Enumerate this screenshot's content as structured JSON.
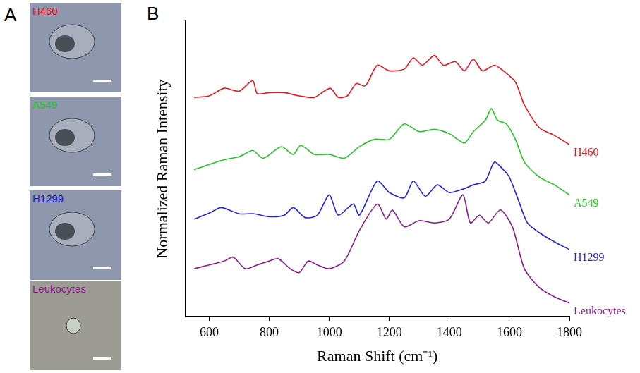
{
  "figure": {
    "panel_a": {
      "letter": "A",
      "images": [
        {
          "label": "H460",
          "color": "#e8141c"
        },
        {
          "label": "A549",
          "color": "#22c322"
        },
        {
          "label": "H1299",
          "color": "#1f1fdc"
        },
        {
          "label": "Leukocytes",
          "color": "#8b1a8b"
        }
      ]
    },
    "panel_b": {
      "letter": "B"
    }
  },
  "chart_data": {
    "type": "line",
    "x_label": "Raman Shift (cm⁻¹)",
    "y_label": "Normalized Raman Intensity",
    "xlim": [
      520,
      1800
    ],
    "xticks": [
      600,
      800,
      1000,
      1200,
      1400,
      1600,
      1800
    ],
    "ylim": [
      0,
      100
    ],
    "tick_labels": "x",
    "grid": false,
    "series": [
      {
        "name": "H460",
        "color": "#e8141c",
        "x": [
          550,
          600,
          650,
          700,
          745,
          760,
          800,
          850,
          900,
          950,
          1003,
          1030,
          1060,
          1090,
          1120,
          1160,
          1200,
          1250,
          1280,
          1310,
          1350,
          1380,
          1420,
          1450,
          1480,
          1510,
          1550,
          1580,
          1620,
          1650,
          1700,
          1750,
          1800
        ],
        "values": [
          74.2,
          74.7,
          77.3,
          76.3,
          79.9,
          75.5,
          75.8,
          75.8,
          74.7,
          74.2,
          77.3,
          74.2,
          74.7,
          78.9,
          78.1,
          85.1,
          83.2,
          83.8,
          87.6,
          85.1,
          88.4,
          85.1,
          86.3,
          83.2,
          87.1,
          83.2,
          85.1,
          83.2,
          79.4,
          71.6,
          63.9,
          61.3,
          58.2
        ]
      },
      {
        "name": "A549",
        "color": "#22c322",
        "x": [
          550,
          600,
          650,
          700,
          745,
          780,
          840,
          880,
          905,
          950,
          1000,
          1050,
          1100,
          1150,
          1200,
          1250,
          1300,
          1350,
          1400,
          1450,
          1480,
          1520,
          1540,
          1560,
          1590,
          1620,
          1650,
          1700,
          1750,
          1800
        ],
        "values": [
          49.7,
          51.5,
          53.1,
          54.1,
          56.2,
          53.6,
          57.5,
          54.9,
          58,
          54.9,
          54.9,
          53.6,
          57.5,
          60,
          60,
          65.2,
          62.6,
          63.4,
          61.9,
          58.8,
          62.6,
          66.5,
          70.4,
          66.5,
          65.2,
          60,
          52.3,
          47.2,
          44.6,
          41.2
        ]
      },
      {
        "name": "H1299",
        "color": "#1f1fdc",
        "x": [
          550,
          600,
          640,
          700,
          750,
          800,
          850,
          880,
          920,
          960,
          1000,
          1030,
          1080,
          1100,
          1160,
          1200,
          1250,
          1280,
          1320,
          1360,
          1400,
          1450,
          1480,
          1520,
          1550,
          1580,
          1600,
          1630,
          1660,
          1700,
          1750,
          1800
        ],
        "values": [
          33,
          35,
          36.9,
          34.8,
          34.8,
          33.8,
          34.3,
          36.9,
          33.5,
          34.3,
          41.2,
          34.3,
          38.1,
          34.3,
          45.9,
          42,
          40.2,
          45.9,
          40.7,
          44.6,
          42,
          43.3,
          44.6,
          45.9,
          52.3,
          49.7,
          47.2,
          39.4,
          31.7,
          28.4,
          25.3,
          22.7
        ]
      },
      {
        "name": "Leukocytes",
        "color": "#8b1a8b",
        "x": [
          550,
          600,
          650,
          680,
          720,
          760,
          800,
          830,
          870,
          900,
          930,
          960,
          1000,
          1050,
          1100,
          1160,
          1190,
          1210,
          1250,
          1300,
          1350,
          1400,
          1445,
          1470,
          1500,
          1530,
          1570,
          1610,
          1650,
          1700,
          1750,
          1800
        ],
        "values": [
          16.2,
          17.5,
          18.8,
          20.1,
          16.2,
          17.5,
          18.8,
          19.6,
          16.2,
          14.9,
          18.8,
          17.5,
          16.2,
          18.8,
          29.1,
          38.1,
          33,
          36.1,
          30.4,
          32.5,
          31.7,
          33,
          41.2,
          31.7,
          34.3,
          31.7,
          36.1,
          30.4,
          16.2,
          9.8,
          6.7,
          4.6
        ]
      }
    ]
  }
}
